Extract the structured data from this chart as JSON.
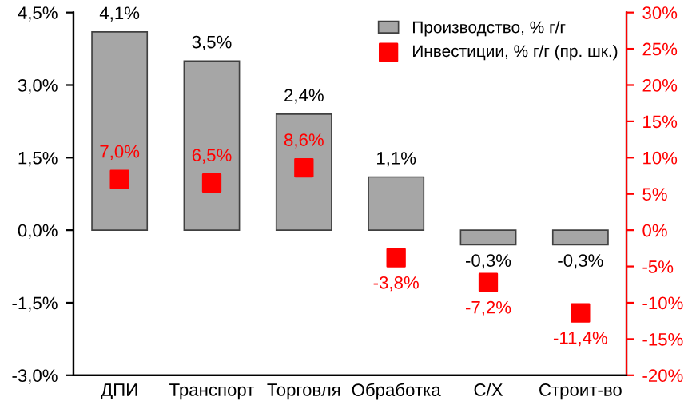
{
  "chart_data": {
    "type": "bar",
    "categories": [
      "ДПИ",
      "Транспорт",
      "Торговля",
      "Обработка",
      "С/Х",
      "Строит-во"
    ],
    "series": [
      {
        "name": "Производство, % г/г",
        "color": "#a6a6a6",
        "values": [
          4.1,
          3.5,
          2.4,
          1.1,
          -0.3,
          -0.3
        ],
        "value_labels": [
          "4,1%",
          "3,5%",
          "2,4%",
          "1,1%",
          "-0,3%",
          "-0,3%"
        ]
      },
      {
        "name": "Инвестиции, % г/г (пр. шк.)",
        "type": "scatter",
        "axis": "y2",
        "color": "#ff0000",
        "marker": "square",
        "values": [
          7.0,
          6.5,
          8.6,
          -3.8,
          -7.2,
          -11.4
        ],
        "value_labels": [
          "7,0%",
          "6,5%",
          "8,6%",
          "-3,8%",
          "-7,2%",
          "-11,4%"
        ]
      }
    ],
    "ylim": [
      -3.0,
      4.5
    ],
    "yticks": [
      {
        "value": -3.0,
        "label": "-3,0%"
      },
      {
        "value": -1.5,
        "label": "-1,5%"
      },
      {
        "value": 0.0,
        "label": "0,0%"
      },
      {
        "value": 1.5,
        "label": "1,5%"
      },
      {
        "value": 3.0,
        "label": "3,0%"
      },
      {
        "value": 4.5,
        "label": "4,5%"
      }
    ],
    "y2lim": [
      -20,
      30
    ],
    "y2ticks": [
      {
        "value": -20,
        "label": "-20%"
      },
      {
        "value": -15,
        "label": "-15%"
      },
      {
        "value": -10,
        "label": "-10%"
      },
      {
        "value": -5,
        "label": "-5%"
      },
      {
        "value": 0,
        "label": "0%"
      },
      {
        "value": 5,
        "label": "5%"
      },
      {
        "value": 10,
        "label": "10%"
      },
      {
        "value": 15,
        "label": "15%"
      },
      {
        "value": 20,
        "label": "20%"
      },
      {
        "value": 25,
        "label": "25%"
      },
      {
        "value": 30,
        "label": "30%"
      }
    ],
    "legend": "top right",
    "grid": false
  }
}
